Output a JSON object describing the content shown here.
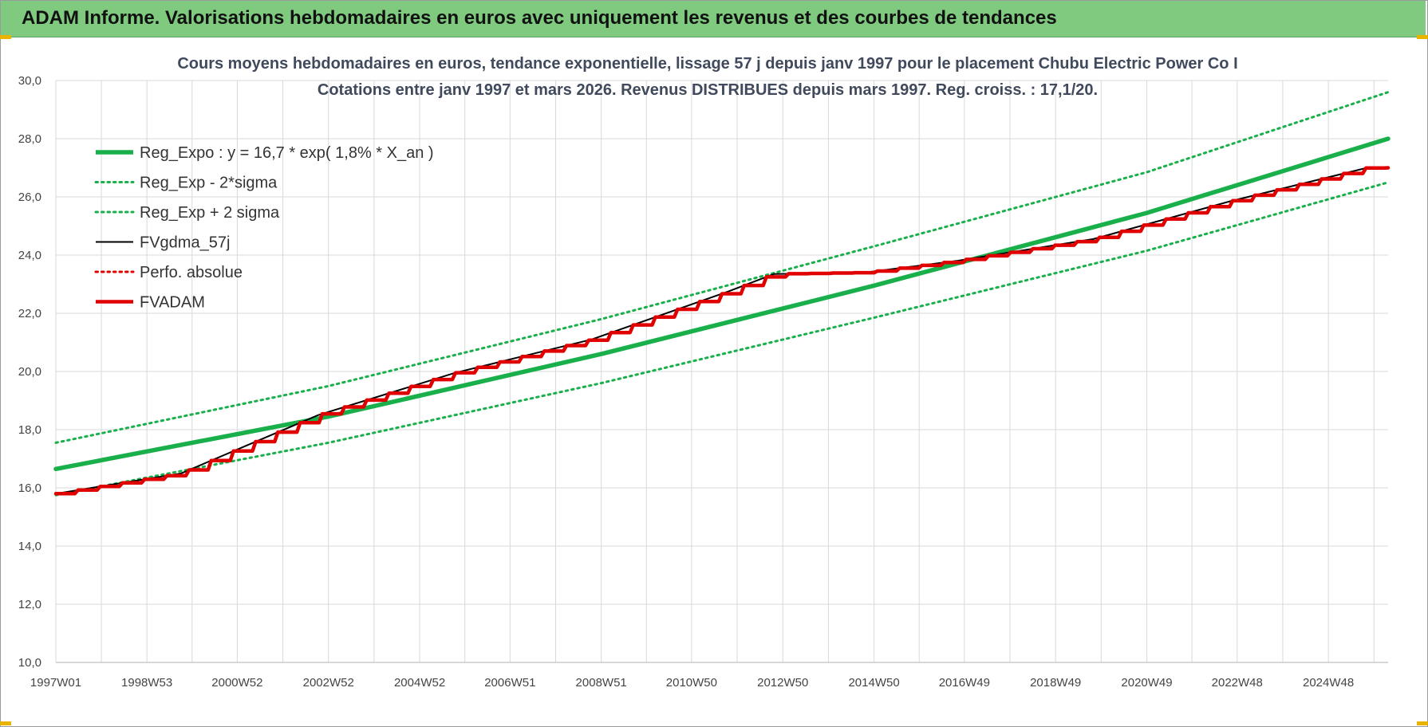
{
  "banner": {
    "title": "ADAM Informe. Valorisations hebdomadaires en euros avec uniquement les revenus et des courbes de tendances"
  },
  "colors": {
    "banner_bg": "#7fca7f",
    "trend_green": "#19b04b",
    "adam_red": "#e00000",
    "gdma_black": "#000000",
    "grid": "#d9d9d9"
  },
  "chart_data": {
    "type": "line",
    "title": "Cours moyens hebdomadaires en euros, tendance exponentielle, lissage 57 j depuis janv 1997 pour le placement Chubu Electric Power Co I",
    "subtitle": "Cotations entre janv 1997 et mars 2026. Revenus DISTRIBUES depuis mars 1997. Reg. croiss. : 17,1/20.",
    "xlabel": "",
    "ylabel": "",
    "x_range": [
      "1997W01",
      "2026W12"
    ],
    "x_tick_labels": [
      "1997W01",
      "1998W53",
      "2000W52",
      "2002W52",
      "2004W52",
      "2006W51",
      "2008W51",
      "2010W50",
      "2012W50",
      "2014W50",
      "2016W49",
      "2018W49",
      "2020W49",
      "2022W48",
      "2024W48"
    ],
    "ylim": [
      10.0,
      30.0
    ],
    "y_ticks": [
      "10,0",
      "12,0",
      "14,0",
      "16,0",
      "18,0",
      "20,0",
      "22,0",
      "24,0",
      "26,0",
      "28,0",
      "30,0"
    ],
    "grid": true,
    "legend_position": "top-left",
    "series": [
      {
        "name": "Reg_Expo : y = 16,7 * exp( 1,8% *  X_an )",
        "style": "solid-thick",
        "color": "#19b04b",
        "points": [
          [
            "1997W01",
            16.65
          ],
          [
            "2002W52",
            18.45
          ],
          [
            "2008W51",
            20.6
          ],
          [
            "2014W50",
            22.95
          ],
          [
            "2020W49",
            25.45
          ],
          [
            "2026W12",
            28.0
          ]
        ]
      },
      {
        "name": "Reg_Exp - 2*sigma",
        "style": "dotted",
        "color": "#19b04b",
        "points": [
          [
            "1997W01",
            15.75
          ],
          [
            "2002W52",
            17.55
          ],
          [
            "2008W51",
            19.6
          ],
          [
            "2014W50",
            21.85
          ],
          [
            "2020W49",
            24.15
          ],
          [
            "2026W12",
            26.5
          ]
        ]
      },
      {
        "name": "Reg_Exp + 2 sigma",
        "style": "dotted",
        "color": "#19b04b",
        "points": [
          [
            "1997W01",
            17.55
          ],
          [
            "2002W52",
            19.5
          ],
          [
            "2008W51",
            21.8
          ],
          [
            "2014W50",
            24.3
          ],
          [
            "2020W49",
            26.85
          ],
          [
            "2026W12",
            29.6
          ]
        ]
      },
      {
        "name": "FVgdma_57j",
        "style": "solid",
        "color": "#000000",
        "points": [
          [
            "1997W01",
            15.8
          ],
          [
            "1999W40",
            16.5
          ],
          [
            "2002W40",
            18.5
          ],
          [
            "2005W40",
            19.95
          ],
          [
            "2008W40",
            21.1
          ],
          [
            "2011W40",
            22.75
          ],
          [
            "2012W40",
            23.35
          ],
          [
            "2014W40",
            23.4
          ],
          [
            "2016W40",
            23.8
          ],
          [
            "2019W40",
            24.55
          ],
          [
            "2022W40",
            25.85
          ],
          [
            "2025W40",
            27.0
          ],
          [
            "2026W12",
            27.0
          ]
        ]
      },
      {
        "name": "Perfo. absolue",
        "style": "dotted",
        "color": "#e00000",
        "points": []
      },
      {
        "name": "FVADAM",
        "style": "solid-thick-stepped",
        "color": "#e00000",
        "points": [
          [
            "1997W01",
            15.8
          ],
          [
            "1999W40",
            16.5
          ],
          [
            "2002W40",
            18.5
          ],
          [
            "2005W40",
            19.95
          ],
          [
            "2008W40",
            21.1
          ],
          [
            "2011W40",
            22.75
          ],
          [
            "2012W40",
            23.35
          ],
          [
            "2014W40",
            23.4
          ],
          [
            "2016W40",
            23.8
          ],
          [
            "2019W40",
            24.55
          ],
          [
            "2022W40",
            25.85
          ],
          [
            "2025W40",
            27.0
          ],
          [
            "2026W12",
            27.0
          ]
        ]
      }
    ]
  }
}
